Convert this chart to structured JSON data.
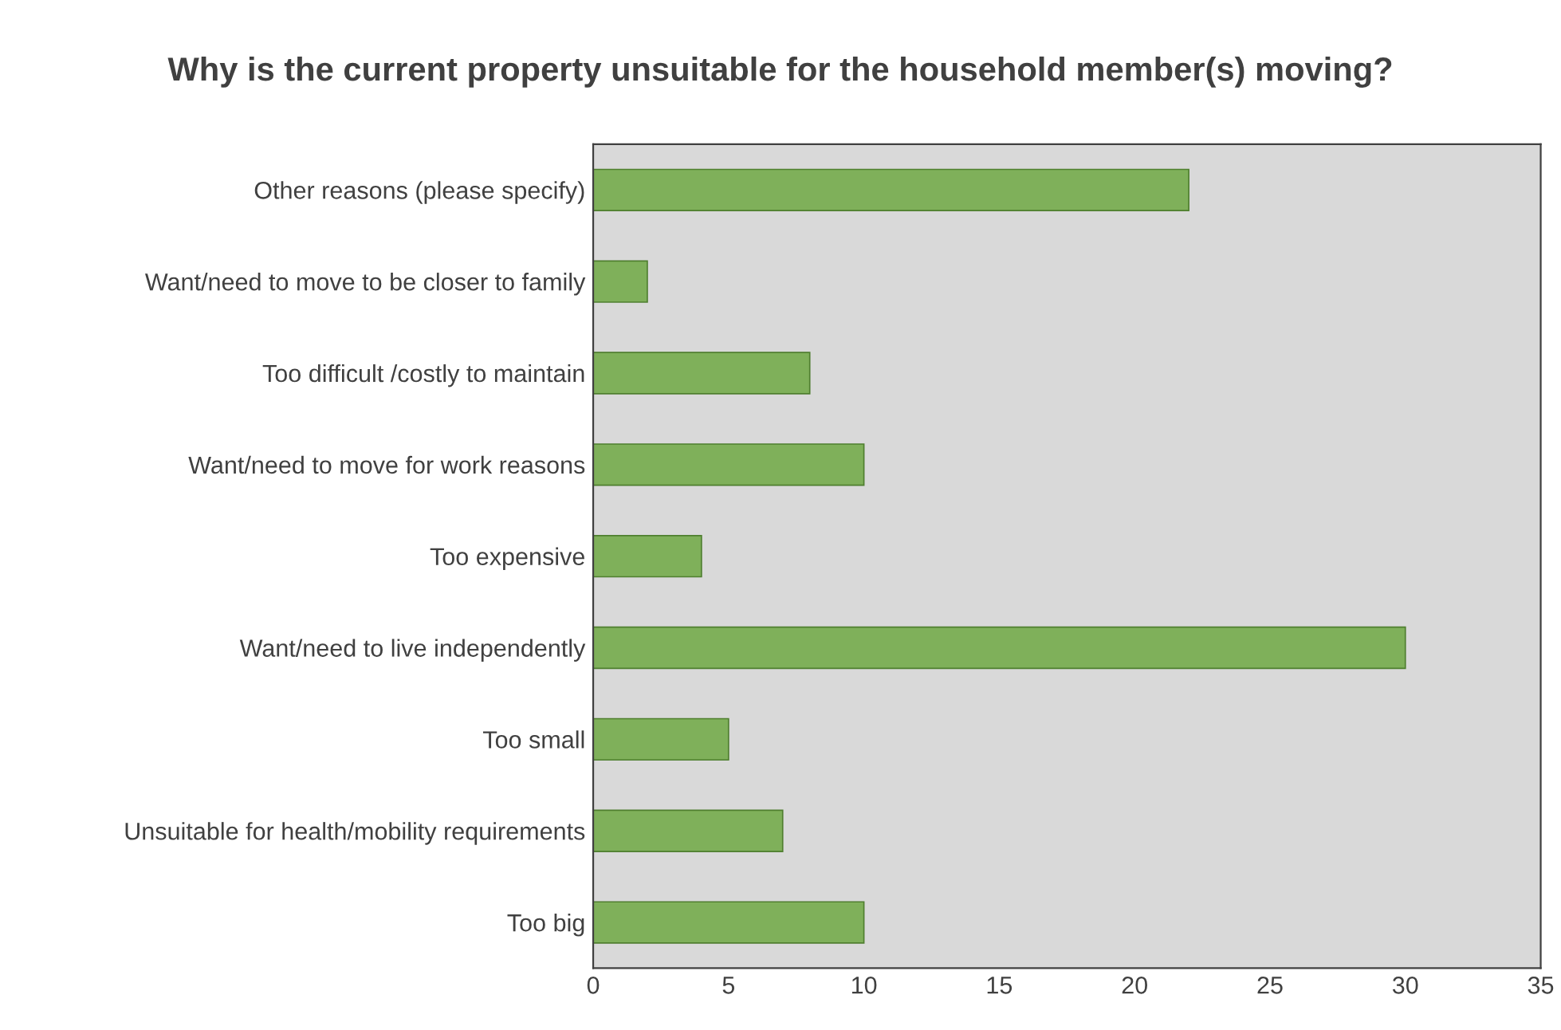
{
  "chart_data": {
    "type": "bar",
    "orientation": "horizontal",
    "title": "Why is the current property unsuitable for the household member(s) moving?",
    "categories": [
      "Other reasons (please specify)",
      "Want/need to move to be closer to family",
      "Too difficult /costly to maintain",
      "Want/need to move for work reasons",
      "Too expensive",
      "Want/need to live independently",
      "Too small",
      "Unsuitable for health/mobility requirements",
      "Too big"
    ],
    "values": [
      22,
      2,
      8,
      10,
      4,
      30,
      5,
      7,
      10
    ],
    "color": "#7fb05a",
    "xlim": [
      0,
      35
    ],
    "xticks": [
      0,
      5,
      10,
      15,
      20,
      25,
      30,
      35
    ],
    "grid": false,
    "legend": false
  }
}
